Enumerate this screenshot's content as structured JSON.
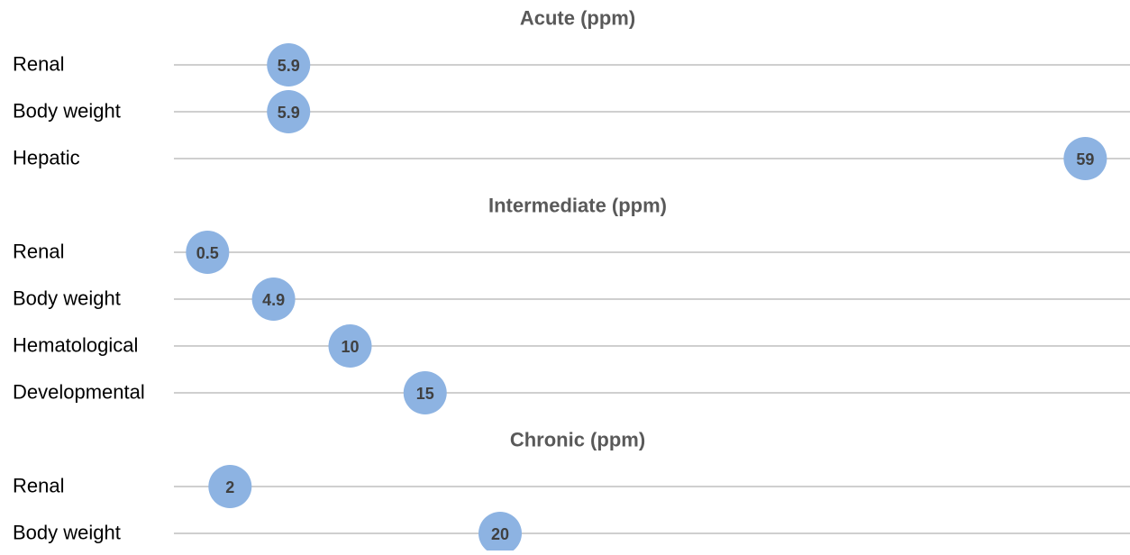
{
  "chart_data": {
    "type": "scatter",
    "description_units": "ppm",
    "xlim": [
      0,
      60
    ],
    "grid": false,
    "marker_color": "#8db3e2",
    "line_color": "#bfbfbf",
    "sections": [
      {
        "title": "Acute (ppm)",
        "rows": [
          {
            "label": "Renal",
            "value": 5.9,
            "value_label": "5.9"
          },
          {
            "label": "Body weight",
            "value": 5.9,
            "value_label": "5.9"
          },
          {
            "label": "Hepatic",
            "value": 59,
            "value_label": "59"
          }
        ]
      },
      {
        "title": "Intermediate (ppm)",
        "rows": [
          {
            "label": "Renal",
            "value": 0.5,
            "value_label": "0.5"
          },
          {
            "label": "Body weight",
            "value": 4.9,
            "value_label": "4.9"
          },
          {
            "label": "Hematological",
            "value": 10,
            "value_label": "10"
          },
          {
            "label": "Developmental",
            "value": 15,
            "value_label": "15"
          }
        ]
      },
      {
        "title": "Chronic (ppm)",
        "rows": [
          {
            "label": "Renal",
            "value": 2,
            "value_label": "2"
          },
          {
            "label": "Body weight",
            "value": 20,
            "value_label": "20"
          }
        ]
      }
    ]
  }
}
